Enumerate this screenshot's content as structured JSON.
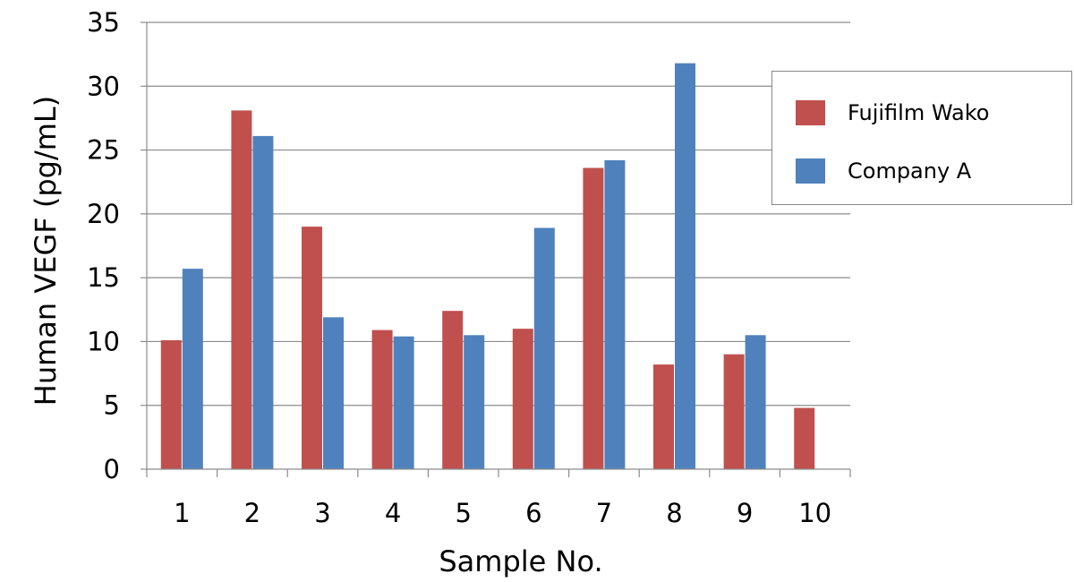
{
  "chart_data": {
    "type": "bar",
    "xlabel": "Sample No.",
    "ylabel": "Human VEGF (pg/mL)",
    "categories": [
      "1",
      "2",
      "3",
      "4",
      "5",
      "6",
      "7",
      "8",
      "9",
      "10"
    ],
    "ylim": [
      0,
      35
    ],
    "yticks": [
      "0",
      "5",
      "10",
      "15",
      "20",
      "25",
      "30",
      "35"
    ],
    "grid": true,
    "legend_position": "right-top",
    "series": [
      {
        "name": "Fujifilm Wako",
        "color": "#c0504d",
        "values": [
          10.1,
          28.1,
          19.0,
          10.9,
          12.4,
          11.0,
          23.6,
          8.2,
          9.0,
          4.8
        ]
      },
      {
        "name": "Company A",
        "color": "#4f81bd",
        "values": [
          15.7,
          26.1,
          11.9,
          10.4,
          10.5,
          18.9,
          24.2,
          31.8,
          10.5,
          null
        ]
      }
    ]
  }
}
